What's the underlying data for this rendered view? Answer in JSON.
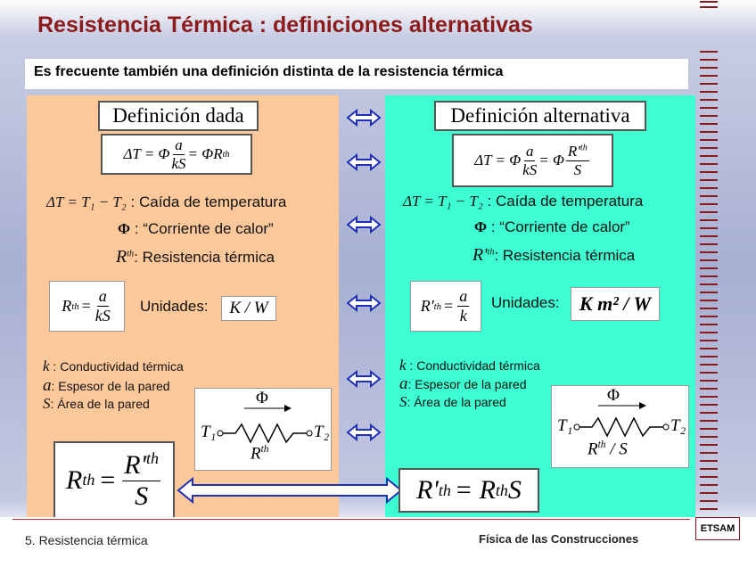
{
  "header": {
    "title": "Resistencia Térmica : definiciones alternativas"
  },
  "intro": "Es frecuente también una definición distinta de la resistencia térmica",
  "left": {
    "heading": "Definición dada",
    "formula": {
      "lhs": "ΔT = Φ",
      "num": "a",
      "den": "kS",
      "rhs": "= ΦR",
      "sup": "th"
    },
    "defs": [
      {
        "symbol": "ΔT = T₁ − T₂",
        "text": " : Caída de temperatura"
      },
      {
        "symbol": "Φ",
        "text": " : “Corriente de calor”"
      },
      {
        "symbol": "R",
        "sup": "th",
        "text": ": Resistencia térmica"
      }
    ],
    "resistance": {
      "lhs": "R",
      "sup": "th",
      "eq": "=",
      "num": "a",
      "den": "kS"
    },
    "units_label": "Unidades:",
    "units": "K / W",
    "props": [
      {
        "symbol": "k",
        "text": " : Conductividad térmica"
      },
      {
        "symbol": "a",
        "text": ": Espesor de la pared"
      },
      {
        "symbol": "S",
        "text": ": Área de la pared"
      }
    ],
    "circuit": {
      "flow": "Φ",
      "t1": "T₁",
      "t2": "T₂",
      "r": "R",
      "sup": "th"
    },
    "relation": {
      "lhs": "R",
      "sup": "th",
      "eq": "=",
      "num": "R'",
      "num_sup": "th",
      "den": "S"
    }
  },
  "right": {
    "heading": "Definición alternativa",
    "formula": {
      "lhs": "ΔT = Φ",
      "num": "a",
      "den": "kS",
      "mid": "= Φ",
      "num2": "R'",
      "sup2": "th",
      "den2": "S"
    },
    "defs": [
      {
        "symbol": "ΔT = T₁ − T₂",
        "text": " : Caída de temperatura"
      },
      {
        "symbol": "Φ",
        "text": " : “Corriente de calor”"
      },
      {
        "symbol": "R'",
        "sup": "th",
        "text": ": Resistencia térmica"
      }
    ],
    "resistance": {
      "lhs": "R'",
      "sup": "th",
      "eq": "=",
      "num": "a",
      "den": "k"
    },
    "units_label": "Unidades:",
    "units": "K m² / W",
    "props": [
      {
        "symbol": "k",
        "text": " : Conductividad térmica"
      },
      {
        "symbol": "a",
        "text": ": Espesor de la pared"
      },
      {
        "symbol": "S",
        "text": ": Área de la pared"
      }
    ],
    "circuit": {
      "flow": "Φ",
      "t1": "T₁",
      "t2": "T₂",
      "r": "R",
      "sup": "th",
      "tail": " / S"
    },
    "relation": {
      "lhs": "R'",
      "sup": "th",
      "eq": "= R",
      "sup2": "th",
      "tail": "S"
    }
  },
  "footer": {
    "section": "5. Resistencia térmica",
    "course": "Física de las Construcciones",
    "school": "ETSAM"
  }
}
